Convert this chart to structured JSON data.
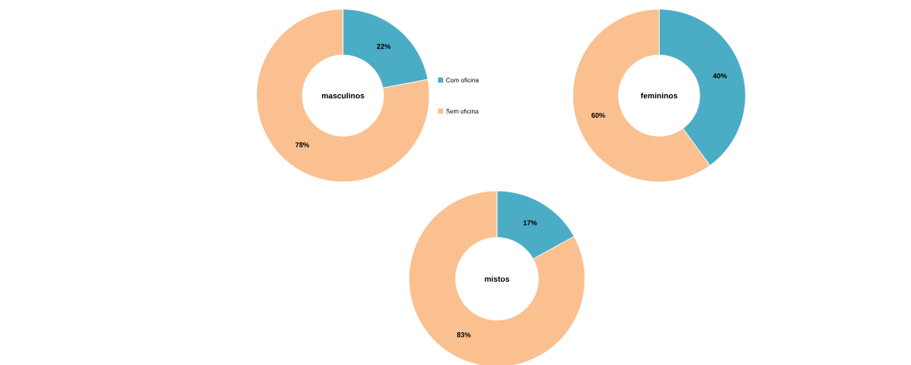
{
  "chart_data": [
    {
      "type": "donut",
      "title": "masculinos",
      "categories": [
        "Com oficina",
        "Sem oficina"
      ],
      "values": [
        22,
        78
      ],
      "value_labels": [
        "22%",
        "78%"
      ],
      "colors": [
        "#4bacc6",
        "#fac090"
      ],
      "legend": "right"
    },
    {
      "type": "donut",
      "title": "femininos",
      "categories": [
        null,
        null
      ],
      "values": [
        40,
        60
      ],
      "value_labels": [
        "40%",
        "60%"
      ],
      "colors": [
        "#4bacc6",
        "#fac090"
      ]
    },
    {
      "type": "donut",
      "title": "mistos",
      "categories": [
        null,
        null
      ],
      "values": [
        17,
        83
      ],
      "value_labels": [
        "17%",
        "83%"
      ],
      "colors": [
        "#4bacc6",
        "#fac090"
      ]
    }
  ]
}
